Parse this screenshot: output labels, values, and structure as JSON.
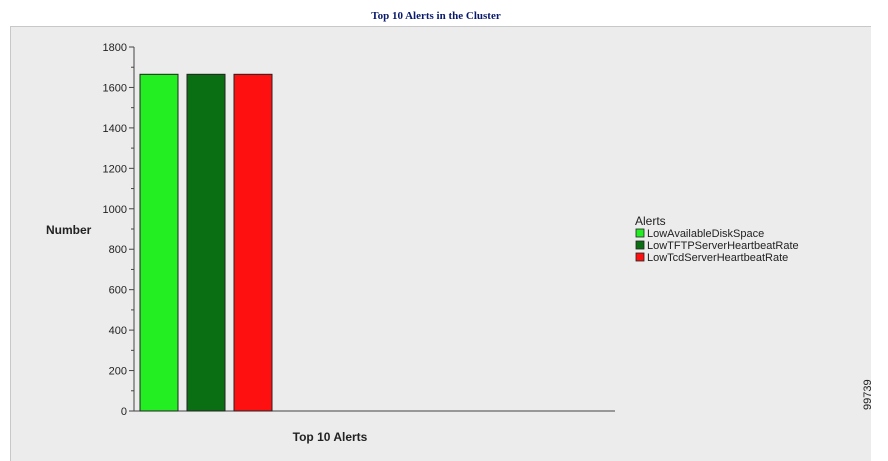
{
  "chart_data": {
    "type": "bar",
    "title": "Top 10 Alerts in the Cluster",
    "xlabel": "Top 10 Alerts",
    "ylabel": "Number",
    "ylim": [
      0,
      1800
    ],
    "yticks": [
      "0",
      "200",
      "400",
      "600",
      "800",
      "1000",
      "1200",
      "1400",
      "1600",
      "1800"
    ],
    "legend": {
      "title": "Alerts",
      "placement": "right"
    },
    "series": [
      {
        "name": "LowAvailableDiskSpace",
        "value": 1665,
        "color": "#22ee22"
      },
      {
        "name": "LowTFTPServerHeartbeatRate",
        "value": 1665,
        "color": "#0a6e12"
      },
      {
        "name": "LowTcdServerHeartbeatRate",
        "value": 1665,
        "color": "#ff1010"
      }
    ]
  },
  "figure_number": "99739"
}
